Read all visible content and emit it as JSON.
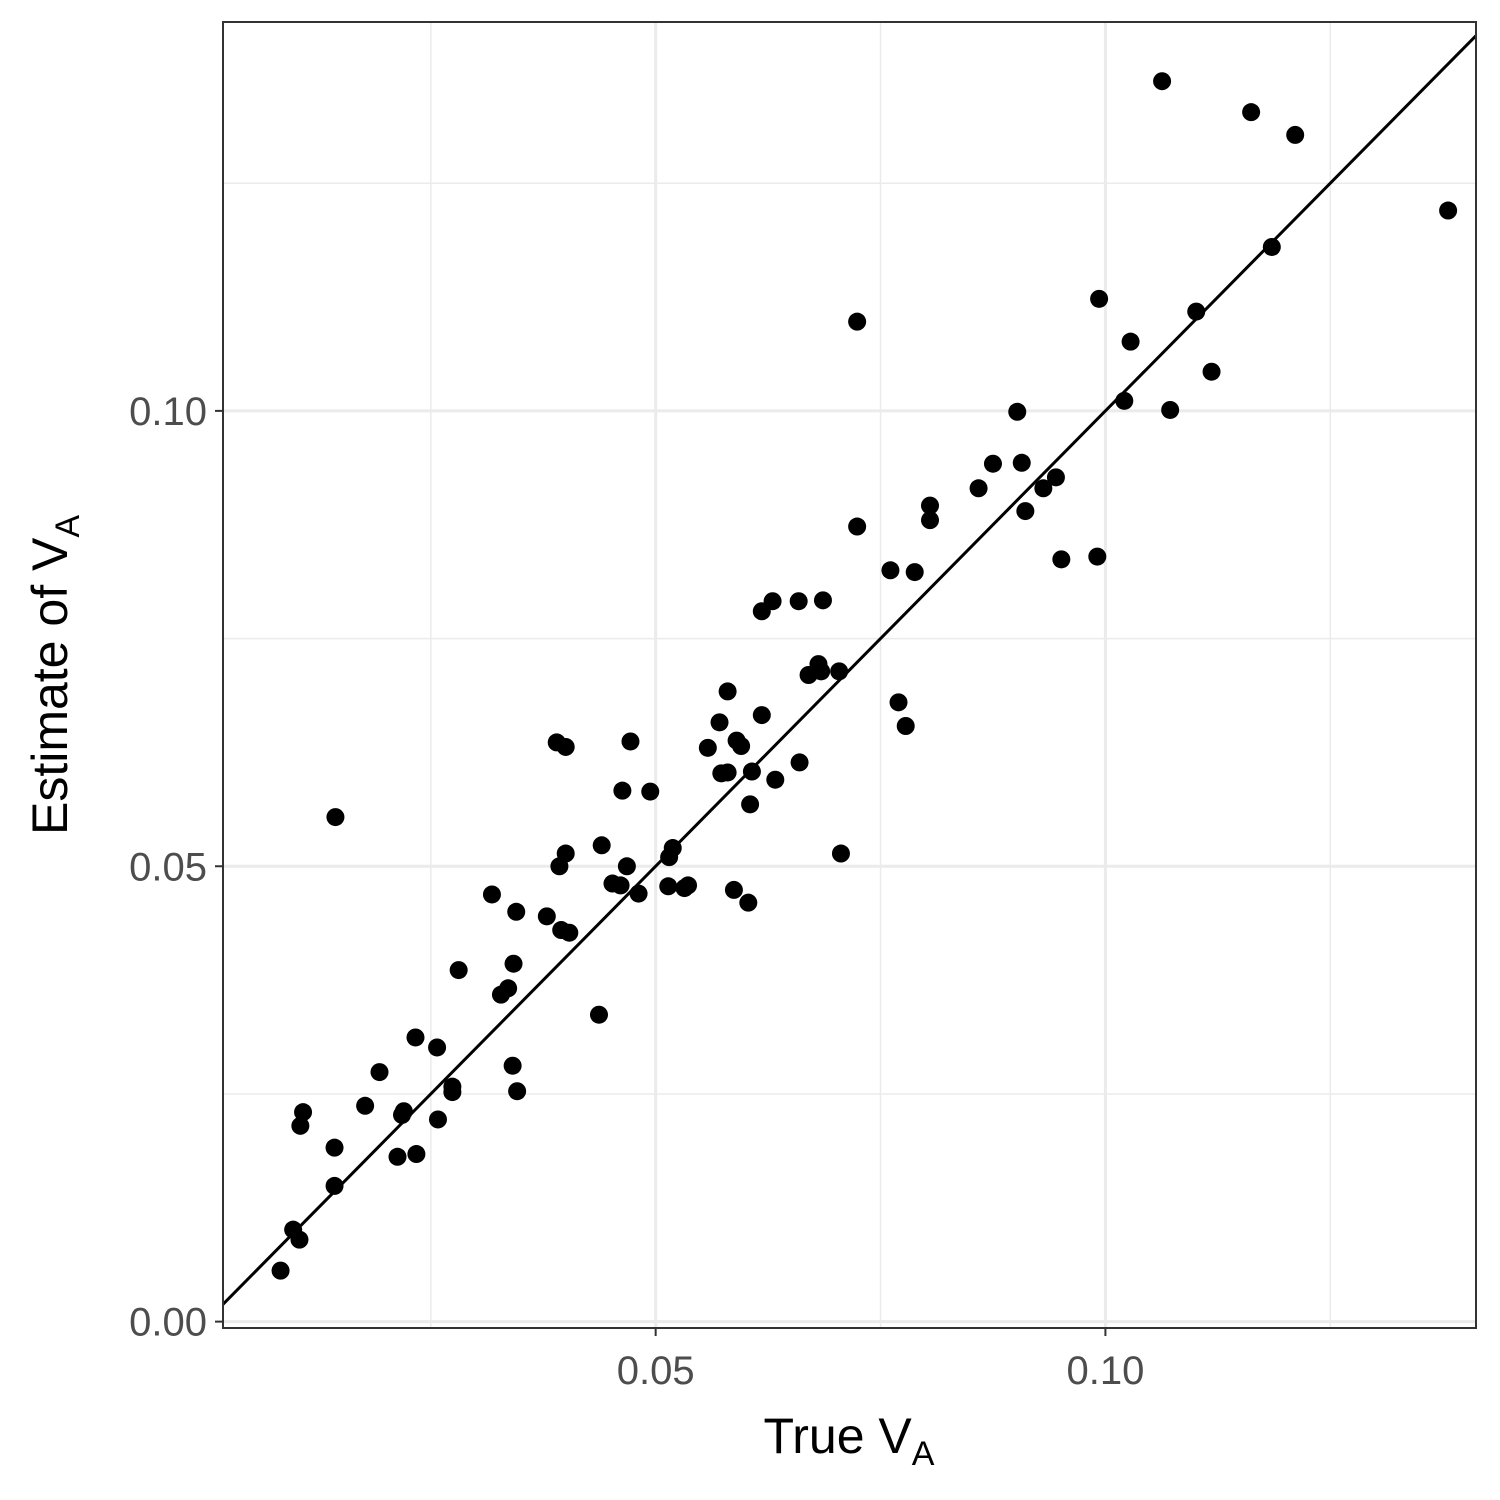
{
  "chart_data": {
    "type": "scatter",
    "xlabel": {
      "main": "True V",
      "sub": "A"
    },
    "ylabel": {
      "main": "Estimate of V",
      "sub": "A"
    },
    "xlim": [
      0.0019,
      0.1412
    ],
    "ylim": [
      -0.0007,
      0.1427
    ],
    "x_ticks": [
      {
        "value": 0.05,
        "label": "0.05"
      },
      {
        "value": 0.1,
        "label": "0.10"
      }
    ],
    "y_ticks": [
      {
        "value": 0.0,
        "label": "0.00"
      },
      {
        "value": 0.05,
        "label": "0.05"
      },
      {
        "value": 0.1,
        "label": "0.10"
      }
    ],
    "x_minor": [
      0.025,
      0.075,
      0.125
    ],
    "y_minor": [
      0.025,
      0.075,
      0.125
    ],
    "grid": true,
    "reference_line": {
      "type": "identity",
      "slope": 1,
      "intercept": 0
    },
    "colors": {
      "points": "#000000",
      "line": "#000000",
      "grid": "#ebebeb",
      "panel_border": "#333333",
      "tick_text": "#4d4d4d"
    },
    "points": [
      {
        "x": 0.0083,
        "y": 0.0056
      },
      {
        "x": 0.0097,
        "y": 0.0101
      },
      {
        "x": 0.0104,
        "y": 0.009
      },
      {
        "x": 0.0105,
        "y": 0.0215
      },
      {
        "x": 0.0108,
        "y": 0.023
      },
      {
        "x": 0.0143,
        "y": 0.0191
      },
      {
        "x": 0.0143,
        "y": 0.0149
      },
      {
        "x": 0.0144,
        "y": 0.0554
      },
      {
        "x": 0.0177,
        "y": 0.0237
      },
      {
        "x": 0.0193,
        "y": 0.0274
      },
      {
        "x": 0.0213,
        "y": 0.0181
      },
      {
        "x": 0.0218,
        "y": 0.0227
      },
      {
        "x": 0.022,
        "y": 0.0231
      },
      {
        "x": 0.0233,
        "y": 0.0312
      },
      {
        "x": 0.0234,
        "y": 0.0184
      },
      {
        "x": 0.0257,
        "y": 0.0301
      },
      {
        "x": 0.0258,
        "y": 0.0222
      },
      {
        "x": 0.0274,
        "y": 0.0258
      },
      {
        "x": 0.0274,
        "y": 0.0252
      },
      {
        "x": 0.0281,
        "y": 0.0386
      },
      {
        "x": 0.0318,
        "y": 0.0469
      },
      {
        "x": 0.0328,
        "y": 0.0359
      },
      {
        "x": 0.0336,
        "y": 0.0366
      },
      {
        "x": 0.0341,
        "y": 0.0281
      },
      {
        "x": 0.0342,
        "y": 0.0393
      },
      {
        "x": 0.0345,
        "y": 0.045
      },
      {
        "x": 0.0346,
        "y": 0.0253
      },
      {
        "x": 0.0379,
        "y": 0.0445
      },
      {
        "x": 0.039,
        "y": 0.0636
      },
      {
        "x": 0.0393,
        "y": 0.05
      },
      {
        "x": 0.0395,
        "y": 0.043
      },
      {
        "x": 0.04,
        "y": 0.0631
      },
      {
        "x": 0.04,
        "y": 0.0514
      },
      {
        "x": 0.0404,
        "y": 0.0427
      },
      {
        "x": 0.0437,
        "y": 0.0337
      },
      {
        "x": 0.044,
        "y": 0.0523
      },
      {
        "x": 0.0452,
        "y": 0.0481
      },
      {
        "x": 0.0461,
        "y": 0.0479
      },
      {
        "x": 0.0463,
        "y": 0.0583
      },
      {
        "x": 0.0468,
        "y": 0.05
      },
      {
        "x": 0.0472,
        "y": 0.0637
      },
      {
        "x": 0.0481,
        "y": 0.047
      },
      {
        "x": 0.0494,
        "y": 0.0582
      },
      {
        "x": 0.0514,
        "y": 0.0478
      },
      {
        "x": 0.0515,
        "y": 0.051
      },
      {
        "x": 0.0519,
        "y": 0.052
      },
      {
        "x": 0.0532,
        "y": 0.0476
      },
      {
        "x": 0.0536,
        "y": 0.0479
      },
      {
        "x": 0.0558,
        "y": 0.063
      },
      {
        "x": 0.0571,
        "y": 0.0658
      },
      {
        "x": 0.0573,
        "y": 0.0602
      },
      {
        "x": 0.058,
        "y": 0.0603
      },
      {
        "x": 0.058,
        "y": 0.0692
      },
      {
        "x": 0.0587,
        "y": 0.0474
      },
      {
        "x": 0.059,
        "y": 0.0638
      },
      {
        "x": 0.0595,
        "y": 0.0632
      },
      {
        "x": 0.0603,
        "y": 0.046
      },
      {
        "x": 0.0605,
        "y": 0.0568
      },
      {
        "x": 0.0607,
        "y": 0.0604
      },
      {
        "x": 0.0618,
        "y": 0.0666
      },
      {
        "x": 0.0618,
        "y": 0.078
      },
      {
        "x": 0.063,
        "y": 0.0791
      },
      {
        "x": 0.0633,
        "y": 0.0595
      },
      {
        "x": 0.066,
        "y": 0.0614
      },
      {
        "x": 0.0659,
        "y": 0.0791
      },
      {
        "x": 0.067,
        "y": 0.071
      },
      {
        "x": 0.0681,
        "y": 0.0722
      },
      {
        "x": 0.0684,
        "y": 0.0714
      },
      {
        "x": 0.0686,
        "y": 0.0792
      },
      {
        "x": 0.0704,
        "y": 0.0714
      },
      {
        "x": 0.0706,
        "y": 0.0514
      },
      {
        "x": 0.0724,
        "y": 0.0873
      },
      {
        "x": 0.0724,
        "y": 0.1098
      },
      {
        "x": 0.0761,
        "y": 0.0825
      },
      {
        "x": 0.077,
        "y": 0.068
      },
      {
        "x": 0.0778,
        "y": 0.0654
      },
      {
        "x": 0.0788,
        "y": 0.0823
      },
      {
        "x": 0.0805,
        "y": 0.088
      },
      {
        "x": 0.0805,
        "y": 0.0896
      },
      {
        "x": 0.0859,
        "y": 0.0915
      },
      {
        "x": 0.0875,
        "y": 0.0942
      },
      {
        "x": 0.0902,
        "y": 0.0999
      },
      {
        "x": 0.0907,
        "y": 0.0943
      },
      {
        "x": 0.0911,
        "y": 0.089
      },
      {
        "x": 0.0931,
        "y": 0.0915
      },
      {
        "x": 0.0945,
        "y": 0.0927
      },
      {
        "x": 0.0951,
        "y": 0.0837
      },
      {
        "x": 0.0991,
        "y": 0.084
      },
      {
        "x": 0.0993,
        "y": 0.1123
      },
      {
        "x": 0.1021,
        "y": 0.1011
      },
      {
        "x": 0.1028,
        "y": 0.1076
      },
      {
        "x": 0.1063,
        "y": 0.1362
      },
      {
        "x": 0.1072,
        "y": 0.1001
      },
      {
        "x": 0.1101,
        "y": 0.1109
      },
      {
        "x": 0.1118,
        "y": 0.1043
      },
      {
        "x": 0.1162,
        "y": 0.1328
      },
      {
        "x": 0.1185,
        "y": 0.118
      },
      {
        "x": 0.1211,
        "y": 0.1303
      },
      {
        "x": 0.1381,
        "y": 0.122
      }
    ]
  }
}
